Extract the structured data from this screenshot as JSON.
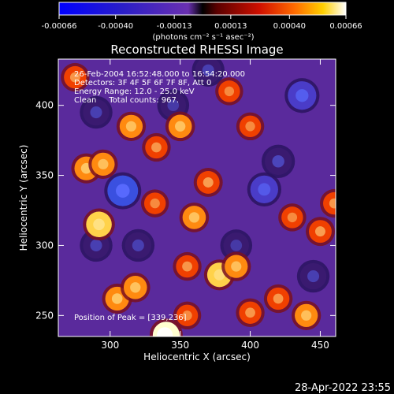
{
  "chart_data": {
    "type": "heatmap",
    "title": "Reconstructed RHESSI Image",
    "xlabel": "Heliocentric X (arcsec)",
    "ylabel": "Heliocentric Y (arcsec)",
    "xlim": [
      263,
      461
    ],
    "ylim": [
      235,
      433
    ],
    "x_ticks": [
      300,
      350,
      400,
      450
    ],
    "y_ticks": [
      250,
      300,
      350,
      400
    ],
    "colorbar": {
      "min": -0.00066,
      "max": 0.00066,
      "tick_values": [
        -0.00066,
        -0.0004,
        -0.00013,
        0.00013,
        0.0004,
        0.00066
      ],
      "tick_labels": [
        "-0.00066",
        "-0.00040",
        "-0.00013",
        "0.00013",
        "0.00040",
        "0.00066"
      ],
      "unit_label": "(photons cm⁻² s⁻¹ asec⁻²)"
    },
    "annotations": [
      "26-Feb-2004 16:52:48.000 to 16:54:20.000",
      "Detectors: 3F 4F 5F 6F 7F 8F, Att 0",
      "Energy Range: 12.0 - 25.0 keV",
      "Clean     Total counts: 967."
    ],
    "peak_label": "Position of Peak = [339,236]",
    "peak": [
      339,
      236
    ],
    "blobs": [
      {
        "x": 309,
        "y": 339,
        "v": -0.0006
      },
      {
        "x": 410,
        "y": 340,
        "v": -0.0004
      },
      {
        "x": 437,
        "y": 407,
        "v": -0.00045
      },
      {
        "x": 420,
        "y": 360,
        "v": -0.00035
      },
      {
        "x": 445,
        "y": 278,
        "v": -0.0003
      },
      {
        "x": 290,
        "y": 395,
        "v": -0.0003
      },
      {
        "x": 290,
        "y": 300,
        "v": -0.0003
      },
      {
        "x": 370,
        "y": 425,
        "v": -0.0003
      },
      {
        "x": 390,
        "y": 300,
        "v": -0.00025
      },
      {
        "x": 320,
        "y": 300,
        "v": -0.0003
      },
      {
        "x": 345,
        "y": 400,
        "v": -0.00025
      },
      {
        "x": 340,
        "y": 236,
        "v": 0.00066
      },
      {
        "x": 292,
        "y": 315,
        "v": 0.00058
      },
      {
        "x": 305,
        "y": 262,
        "v": 0.00045
      },
      {
        "x": 318,
        "y": 270,
        "v": 0.00042
      },
      {
        "x": 283,
        "y": 355,
        "v": 0.00045
      },
      {
        "x": 295,
        "y": 358,
        "v": 0.0004
      },
      {
        "x": 315,
        "y": 385,
        "v": 0.0004
      },
      {
        "x": 350,
        "y": 385,
        "v": 0.00042
      },
      {
        "x": 333,
        "y": 370,
        "v": 0.00035
      },
      {
        "x": 360,
        "y": 320,
        "v": 0.00042
      },
      {
        "x": 370,
        "y": 345,
        "v": 0.00038
      },
      {
        "x": 332,
        "y": 330,
        "v": 0.0003
      },
      {
        "x": 378,
        "y": 279,
        "v": 0.0005
      },
      {
        "x": 390,
        "y": 285,
        "v": 0.0004
      },
      {
        "x": 355,
        "y": 285,
        "v": 0.00035
      },
      {
        "x": 400,
        "y": 252,
        "v": 0.00035
      },
      {
        "x": 420,
        "y": 262,
        "v": 0.00035
      },
      {
        "x": 440,
        "y": 250,
        "v": 0.0004
      },
      {
        "x": 450,
        "y": 310,
        "v": 0.00038
      },
      {
        "x": 430,
        "y": 320,
        "v": 0.0003
      },
      {
        "x": 400,
        "y": 385,
        "v": 0.0003
      },
      {
        "x": 385,
        "y": 410,
        "v": 0.0003
      },
      {
        "x": 275,
        "y": 420,
        "v": 0.00035
      },
      {
        "x": 460,
        "y": 330,
        "v": 0.00035
      },
      {
        "x": 355,
        "y": 250,
        "v": 0.0003
      }
    ],
    "grid": false,
    "legend": "none"
  },
  "footer": {
    "timestamp": "28-Apr-2022 23:55"
  }
}
